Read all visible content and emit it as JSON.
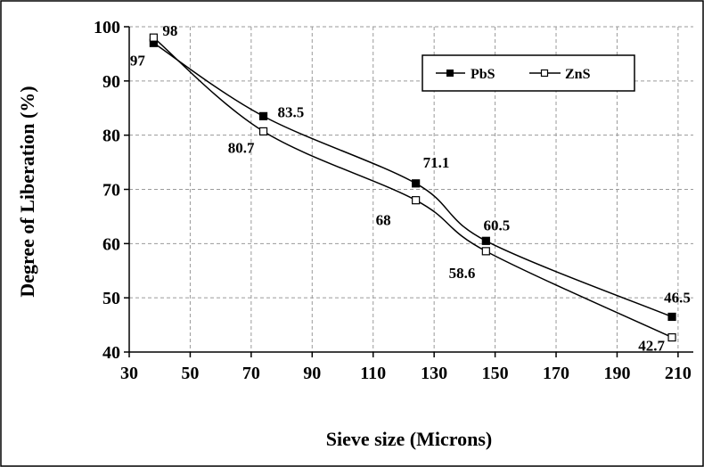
{
  "chart_data": {
    "type": "line",
    "title": "",
    "xlabel": "Sieve size (Microns)",
    "ylabel": "Degree of Liberation (%)",
    "xlim": [
      30,
      215
    ],
    "ylim": [
      40,
      100
    ],
    "xticks": [
      30,
      50,
      70,
      90,
      110,
      130,
      150,
      170,
      190,
      210
    ],
    "yticks": [
      40,
      50,
      60,
      70,
      80,
      90,
      100
    ],
    "grid": true,
    "legend_position": "top-right",
    "series": [
      {
        "name": "PbS",
        "marker": "filled-square",
        "color": "#000000",
        "x": [
          38,
          74,
          124,
          147,
          208
        ],
        "y": [
          97,
          83.5,
          71.1,
          60.5,
          46.5
        ],
        "labels": [
          "97",
          "83.5",
          "71.1",
          "60.5",
          "46.5"
        ]
      },
      {
        "name": "ZnS",
        "marker": "open-square",
        "color": "#000000",
        "x": [
          38,
          74,
          124,
          147,
          208
        ],
        "y": [
          98,
          80.7,
          68,
          58.6,
          42.7
        ],
        "labels": [
          "98",
          "80.7",
          "68",
          "58.6",
          "42.7"
        ]
      }
    ]
  }
}
